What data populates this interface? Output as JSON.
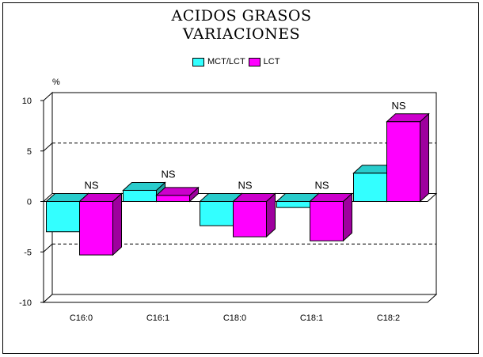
{
  "chart_data": {
    "type": "bar",
    "title": [
      "ACIDOS GRASOS",
      "VARIACIONES"
    ],
    "ylabel": "%",
    "xlabel": "",
    "ylim": [
      -10,
      10
    ],
    "yticks": [
      10,
      5,
      0,
      -5,
      -10
    ],
    "grid": "dashed at 5 and -5",
    "legend_position": "top-center",
    "categories": [
      "C16:0",
      "C16:1",
      "C18:0",
      "C18:1",
      "C18:2"
    ],
    "series": [
      {
        "name": "MCT/LCT",
        "color": "#33ffff",
        "values": [
          -3.0,
          1.1,
          -2.4,
          -0.6,
          2.8
        ]
      },
      {
        "name": "LCT",
        "color": "#ff00ff",
        "values": [
          -5.3,
          0.6,
          -3.5,
          -3.9,
          7.9
        ]
      }
    ],
    "annotations": [
      "NS",
      "NS",
      "NS",
      "NS",
      "NS"
    ]
  }
}
